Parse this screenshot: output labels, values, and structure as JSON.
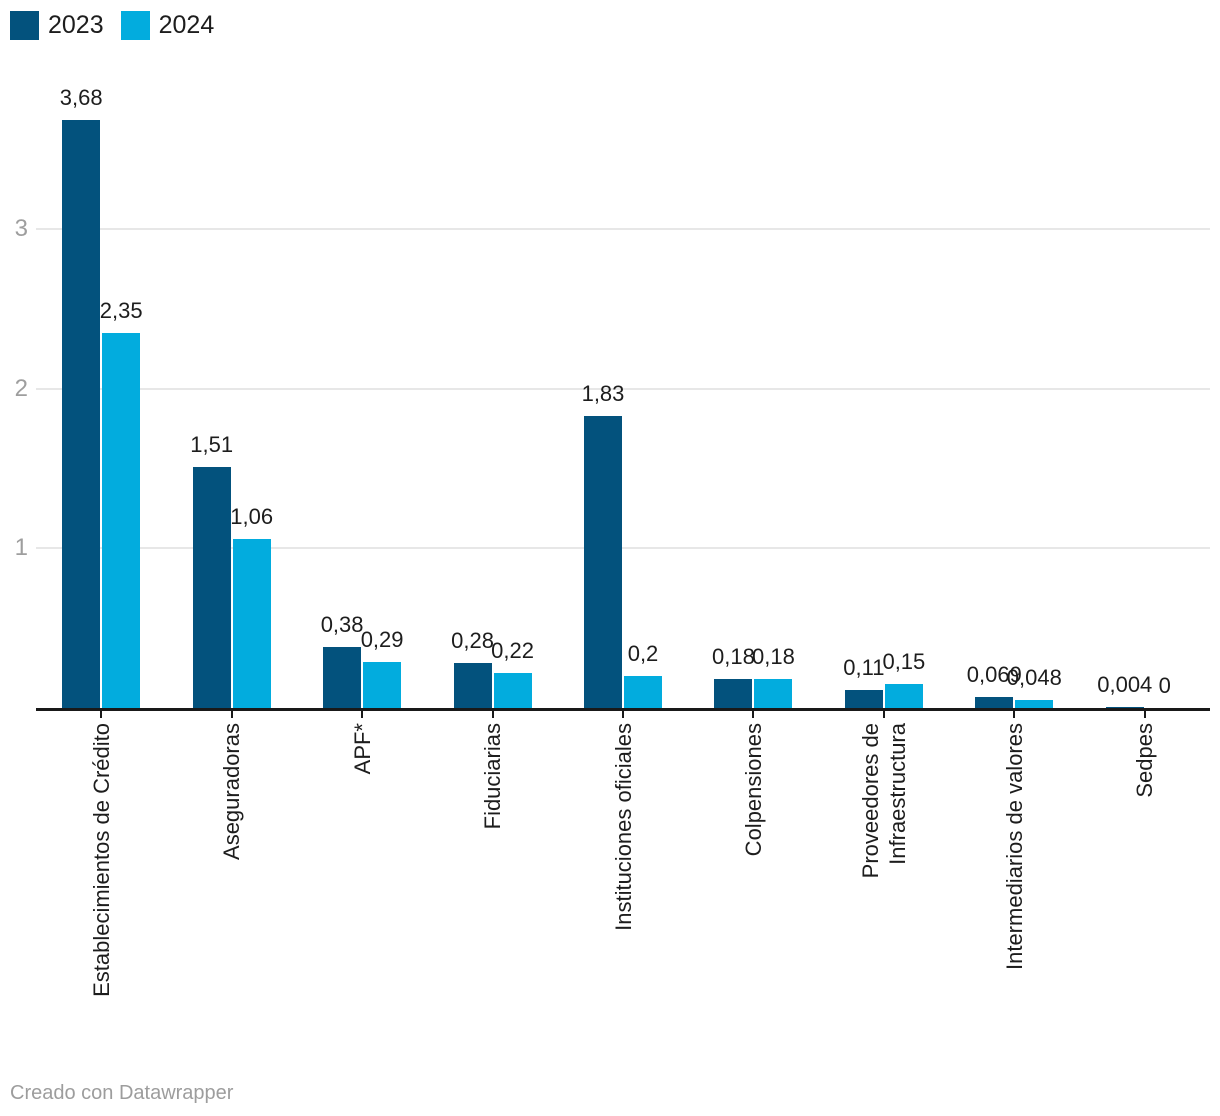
{
  "chart_data": {
    "type": "bar",
    "grouped": true,
    "categories": [
      "Establecimientos de Crédito",
      "Aseguradoras",
      "APF*",
      "Fiduciarias",
      "Instituciones oficiales",
      "Colpensiones",
      "Proveedores de\nInfraestructura",
      "Intermediarios de valores",
      "Sedpes"
    ],
    "series": [
      {
        "name": "2023",
        "color": "#03527D",
        "values": [
          3.68,
          1.51,
          0.38,
          0.28,
          1.83,
          0.18,
          0.11,
          0.069,
          0.004
        ],
        "labels": [
          "3,68",
          "1,51",
          "0,38",
          "0,28",
          "1,83",
          "0,18",
          "0,11",
          "0,069",
          "0,004"
        ]
      },
      {
        "name": "2024",
        "color": "#02ACDE",
        "values": [
          2.35,
          1.06,
          0.29,
          0.22,
          0.2,
          0.18,
          0.15,
          0.048,
          0
        ],
        "labels": [
          "2,35",
          "1,06",
          "0,29",
          "0,22",
          "0,2",
          "0,18",
          "0,15",
          "0,048",
          "0"
        ]
      }
    ],
    "y_axis": {
      "ticks": [
        1,
        2,
        3
      ],
      "tick_labels": [
        "1",
        "2",
        "3"
      ],
      "range": [
        0,
        3.68
      ],
      "grid": true
    },
    "legend_position": "top-left",
    "title": "",
    "xlabel": "",
    "ylabel": ""
  },
  "footer": {
    "text": "Creado con Datawrapper"
  },
  "colors": {
    "grid": "#e7e7e7",
    "axis": "#191919",
    "text": "#1d1d1d",
    "muted_text": "#9e9e9e"
  }
}
